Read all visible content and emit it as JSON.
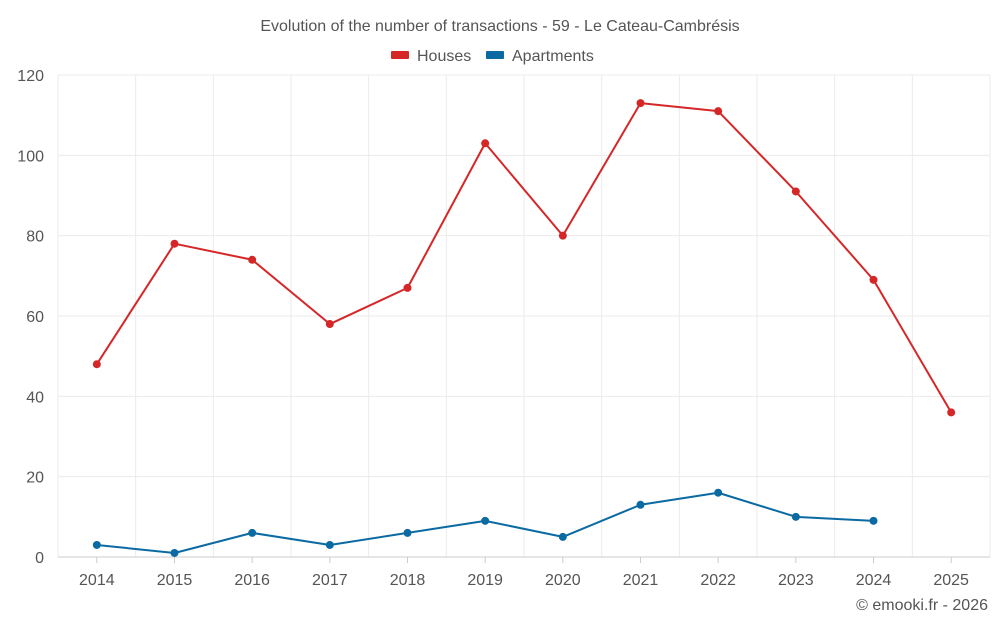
{
  "colors": {
    "houses": "#d62728",
    "apartments": "#0b6aa2",
    "grid": "#ebebeb",
    "axis": "#cccccc",
    "text": "#555555"
  },
  "chart_data": {
    "type": "line",
    "title": "Evolution of the number of transactions - 59 - Le Cateau-Cambrésis",
    "xlabel": "",
    "ylabel": "",
    "categories": [
      "2014",
      "2015",
      "2016",
      "2017",
      "2018",
      "2019",
      "2020",
      "2021",
      "2022",
      "2023",
      "2024",
      "2025"
    ],
    "ylim": [
      0,
      120
    ],
    "yticks": [
      0,
      20,
      40,
      60,
      80,
      100,
      120
    ],
    "grid": true,
    "legend_position": "top-center",
    "series": [
      {
        "name": "Houses",
        "color_key": "houses",
        "values": [
          48,
          78,
          74,
          58,
          67,
          103,
          80,
          113,
          111,
          91,
          69,
          36
        ]
      },
      {
        "name": "Apartments",
        "color_key": "apartments",
        "values": [
          3,
          1,
          6,
          3,
          6,
          9,
          5,
          13,
          16,
          10,
          9,
          null
        ]
      }
    ]
  },
  "credit": "© emooki.fr - 2026"
}
